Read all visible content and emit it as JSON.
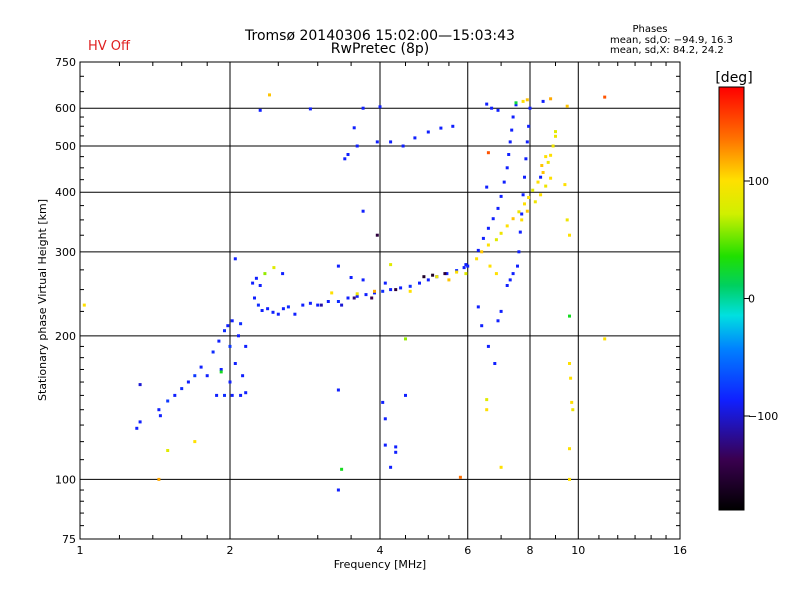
{
  "header": {
    "title_line1": "Tromsø 20140306 15:02:00—15:03:43",
    "title_line2": "RwPretec (8p)",
    "hv_status": "HV Off",
    "hv_color": "#e02020",
    "stats_title": "Phases",
    "stats_o": "mean, sd,O:  −94.9, 16.3",
    "stats_x": "mean, sd,X:  84.2, 24.2"
  },
  "colorbar": {
    "unit": "[deg]",
    "range": [
      -180,
      180
    ],
    "ticks": [
      {
        "value": 100,
        "label": "100"
      },
      {
        "value": 0,
        "label": "0"
      },
      {
        "value": -100,
        "label": "−100"
      }
    ]
  },
  "chart_data": {
    "type": "scatter",
    "xlabel": "Frequency [MHz]",
    "ylabel": "Stationary phase Virtual Height [km]",
    "xscale": "log",
    "yscale": "log",
    "xlim": [
      1,
      16
    ],
    "ylim": [
      75,
      750
    ],
    "grid": true,
    "xticks": [
      {
        "value": 1,
        "label": "1"
      },
      {
        "value": 2,
        "label": "2"
      },
      {
        "value": 4,
        "label": "4"
      },
      {
        "value": 6,
        "label": "6"
      },
      {
        "value": 8,
        "label": "8"
      },
      {
        "value": 10,
        "label": "10"
      },
      {
        "value": 16,
        "label": "16"
      }
    ],
    "yticks": [
      {
        "value": 75,
        "label": "75"
      },
      {
        "value": 100,
        "label": "100"
      },
      {
        "value": 200,
        "label": "200"
      },
      {
        "value": 300,
        "label": "300"
      },
      {
        "value": 400,
        "label": "400"
      },
      {
        "value": 500,
        "label": "500"
      },
      {
        "value": 600,
        "label": "600"
      },
      {
        "value": 750,
        "label": "750"
      }
    ],
    "series": [
      {
        "color_encoding": "phase",
        "points": [
          [
            1.3,
            128,
            -100
          ],
          [
            1.32,
            132,
            -100
          ],
          [
            1.32,
            158,
            -110
          ],
          [
            1.44,
            140,
            -100
          ],
          [
            1.45,
            136,
            -100
          ],
          [
            1.5,
            146,
            -90
          ],
          [
            1.55,
            150,
            -100
          ],
          [
            1.6,
            155,
            -95
          ],
          [
            1.65,
            160,
            -100
          ],
          [
            1.7,
            165,
            -90
          ],
          [
            1.75,
            172,
            -100
          ],
          [
            1.8,
            165,
            -100
          ],
          [
            1.85,
            185,
            -95
          ],
          [
            1.9,
            195,
            -100
          ],
          [
            1.92,
            170,
            -100
          ],
          [
            1.95,
            205,
            -95
          ],
          [
            1.98,
            210,
            -100
          ],
          [
            2.0,
            160,
            -100
          ],
          [
            2.0,
            190,
            -90
          ],
          [
            2.02,
            215,
            -100
          ],
          [
            2.05,
            175,
            -100
          ],
          [
            2.08,
            200,
            -100
          ],
          [
            2.1,
            212,
            -95
          ],
          [
            2.12,
            165,
            -100
          ],
          [
            2.15,
            190,
            -100
          ],
          [
            1.88,
            150,
            -100
          ],
          [
            1.95,
            150,
            -95
          ],
          [
            2.02,
            150,
            -100
          ],
          [
            2.1,
            150,
            -100
          ],
          [
            2.15,
            152,
            -100
          ],
          [
            1.92,
            168,
            30
          ],
          [
            1.5,
            115,
            80
          ],
          [
            1.7,
            120,
            100
          ],
          [
            1.44,
            100,
            120
          ],
          [
            2.24,
            240,
            -100
          ],
          [
            2.28,
            232,
            -95
          ],
          [
            2.32,
            226,
            -100
          ],
          [
            2.38,
            228,
            -100
          ],
          [
            2.44,
            224,
            -100
          ],
          [
            2.5,
            222,
            -100
          ],
          [
            2.56,
            228,
            -100
          ],
          [
            2.62,
            230,
            -95
          ],
          [
            2.7,
            222,
            -100
          ],
          [
            2.8,
            232,
            -100
          ],
          [
            2.9,
            234,
            -100
          ],
          [
            3.0,
            232,
            -100
          ],
          [
            3.15,
            236,
            -100
          ],
          [
            3.3,
            236,
            -95
          ],
          [
            3.45,
            240,
            -100
          ],
          [
            3.6,
            242,
            -100
          ],
          [
            3.75,
            244,
            -100
          ],
          [
            3.9,
            246,
            -100
          ],
          [
            4.05,
            248,
            -95
          ],
          [
            4.2,
            250,
            -100
          ],
          [
            4.4,
            252,
            -100
          ],
          [
            4.6,
            254,
            -95
          ],
          [
            4.8,
            258,
            -100
          ],
          [
            5.0,
            262,
            -100
          ],
          [
            5.2,
            266,
            -100
          ],
          [
            5.45,
            270,
            -100
          ],
          [
            5.7,
            274,
            -95
          ],
          [
            5.9,
            278,
            -100
          ],
          [
            5.95,
            282,
            -100
          ],
          [
            6.0,
            280,
            -100
          ],
          [
            2.22,
            258,
            -100
          ],
          [
            2.26,
            264,
            -100
          ],
          [
            2.3,
            255,
            -100
          ],
          [
            2.35,
            270,
            60
          ],
          [
            2.45,
            278,
            80
          ],
          [
            2.55,
            270,
            -100
          ],
          [
            3.05,
            232,
            -120
          ],
          [
            3.35,
            232,
            -110
          ],
          [
            3.55,
            240,
            -130
          ],
          [
            3.85,
            240,
            -140
          ],
          [
            4.3,
            250,
            -150
          ],
          [
            4.9,
            266,
            -160
          ],
          [
            5.1,
            268,
            -160
          ],
          [
            5.4,
            270,
            -150
          ],
          [
            5.7,
            272,
            100
          ],
          [
            5.95,
            270,
            80
          ],
          [
            5.5,
            262,
            110
          ],
          [
            5.2,
            266,
            90
          ],
          [
            3.6,
            245,
            90
          ],
          [
            3.2,
            246,
            100
          ],
          [
            3.9,
            248,
            120
          ],
          [
            4.6,
            248,
            100
          ],
          [
            2.05,
            290,
            -100
          ],
          [
            2.3,
            594,
            -100
          ],
          [
            2.9,
            598,
            -100
          ],
          [
            3.3,
            280,
            -100
          ],
          [
            3.5,
            265,
            -100
          ],
          [
            3.7,
            262,
            -100
          ],
          [
            4.1,
            258,
            -100
          ],
          [
            4.2,
            282,
            80
          ],
          [
            3.45,
            480,
            -100
          ],
          [
            3.4,
            470,
            -100
          ],
          [
            3.6,
            500,
            -100
          ],
          [
            3.95,
            510,
            -100
          ],
          [
            4.2,
            510,
            -100
          ],
          [
            4.45,
            500,
            -100
          ],
          [
            4.7,
            520,
            -100
          ],
          [
            5.0,
            535,
            -100
          ],
          [
            5.3,
            545,
            -100
          ],
          [
            5.6,
            550,
            -100
          ],
          [
            3.7,
            600,
            -100
          ],
          [
            4.0,
            604,
            -100
          ],
          [
            3.55,
            546,
            -100
          ],
          [
            3.7,
            365,
            -100
          ],
          [
            3.95,
            325,
            -150
          ],
          [
            2.4,
            640,
            110
          ],
          [
            6.25,
            290,
            100
          ],
          [
            6.4,
            300,
            110
          ],
          [
            6.6,
            310,
            100
          ],
          [
            6.85,
            318,
            80
          ],
          [
            7.0,
            328,
            90
          ],
          [
            7.2,
            340,
            100
          ],
          [
            7.4,
            352,
            110
          ],
          [
            7.6,
            364,
            90
          ],
          [
            7.8,
            378,
            100
          ],
          [
            7.95,
            390,
            100
          ],
          [
            8.1,
            404,
            80
          ],
          [
            8.3,
            420,
            100
          ],
          [
            8.5,
            440,
            110
          ],
          [
            8.7,
            462,
            90
          ],
          [
            8.8,
            478,
            100
          ],
          [
            8.9,
            500,
            90
          ],
          [
            9.0,
            524,
            90
          ],
          [
            9.0,
            536,
            80
          ],
          [
            7.7,
            350,
            100
          ],
          [
            7.9,
            365,
            110
          ],
          [
            8.2,
            382,
            90
          ],
          [
            8.4,
            395,
            100
          ],
          [
            8.6,
            412,
            90
          ],
          [
            8.8,
            428,
            100
          ],
          [
            6.3,
            302,
            -100
          ],
          [
            6.45,
            320,
            -100
          ],
          [
            6.6,
            336,
            -100
          ],
          [
            6.75,
            352,
            -100
          ],
          [
            6.9,
            370,
            -100
          ],
          [
            7.0,
            392,
            -100
          ],
          [
            7.1,
            420,
            -100
          ],
          [
            7.2,
            450,
            -100
          ],
          [
            7.25,
            480,
            -100
          ],
          [
            7.3,
            510,
            -100
          ],
          [
            7.35,
            540,
            -100
          ],
          [
            7.4,
            575,
            -100
          ],
          [
            7.5,
            610,
            -100
          ],
          [
            7.6,
            300,
            -100
          ],
          [
            7.65,
            330,
            -100
          ],
          [
            7.7,
            360,
            -100
          ],
          [
            7.75,
            395,
            -100
          ],
          [
            7.8,
            430,
            -100
          ],
          [
            7.85,
            470,
            -100
          ],
          [
            7.9,
            510,
            -100
          ],
          [
            7.95,
            550,
            -100
          ],
          [
            8.0,
            600,
            -100
          ],
          [
            7.55,
            280,
            -100
          ],
          [
            7.4,
            270,
            -100
          ],
          [
            7.3,
            262,
            -100
          ],
          [
            7.2,
            255,
            -100
          ],
          [
            6.3,
            230,
            -100
          ],
          [
            6.4,
            210,
            -100
          ],
          [
            6.6,
            190,
            -100
          ],
          [
            6.8,
            175,
            -100
          ],
          [
            6.9,
            215,
            -100
          ],
          [
            7.0,
            225,
            -100
          ],
          [
            6.55,
            612,
            -100
          ],
          [
            6.7,
            600,
            -100
          ],
          [
            6.9,
            594,
            -100
          ],
          [
            8.5,
            620,
            -100
          ],
          [
            7.75,
            620,
            100
          ],
          [
            7.9,
            625,
            110
          ],
          [
            7.5,
            616,
            20
          ],
          [
            9.5,
            606,
            110
          ],
          [
            8.8,
            628,
            120
          ],
          [
            6.6,
            484,
            150
          ],
          [
            6.65,
            280,
            100
          ],
          [
            6.85,
            270,
            100
          ],
          [
            9.4,
            415,
            100
          ],
          [
            9.5,
            350,
            90
          ],
          [
            9.6,
            325,
            100
          ],
          [
            9.6,
            220,
            30
          ],
          [
            9.6,
            175,
            100
          ],
          [
            9.65,
            163,
            100
          ],
          [
            9.7,
            145,
            100
          ],
          [
            9.75,
            140,
            90
          ],
          [
            9.6,
            116,
            100
          ],
          [
            9.6,
            100,
            100
          ],
          [
            11.3,
            197,
            100
          ],
          [
            11.3,
            633,
            150
          ],
          [
            6.55,
            147,
            80
          ],
          [
            6.55,
            140,
            100
          ],
          [
            7.0,
            106,
            100
          ],
          [
            6.55,
            410,
            -100
          ],
          [
            3.3,
            95,
            -100
          ],
          [
            3.35,
            105,
            30
          ],
          [
            3.3,
            154,
            -100
          ],
          [
            4.1,
            134,
            -100
          ],
          [
            4.1,
            118,
            -100
          ],
          [
            4.2,
            106,
            -100
          ],
          [
            4.3,
            117,
            -100
          ],
          [
            4.3,
            114,
            -100
          ],
          [
            4.5,
            197,
            60
          ],
          [
            5.8,
            101,
            140
          ],
          [
            4.5,
            150,
            -100
          ],
          [
            4.05,
            145,
            -100
          ],
          [
            1.02,
            232,
            100
          ],
          [
            8.4,
            430,
            -100
          ],
          [
            8.45,
            455,
            110
          ],
          [
            8.6,
            475,
            100
          ]
        ]
      }
    ]
  }
}
